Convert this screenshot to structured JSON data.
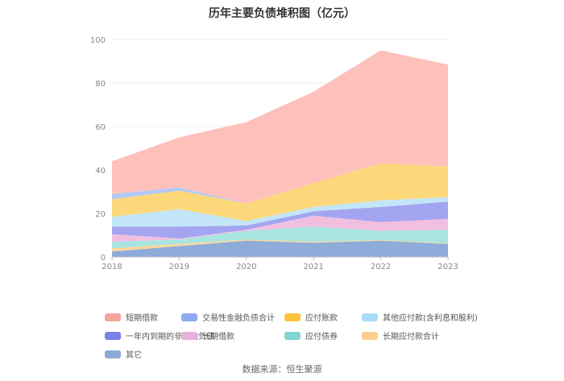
{
  "chart_data": {
    "type": "area",
    "stacked": true,
    "title": "历年主要负债堆积图（亿元）",
    "x": [
      "2018",
      "2019",
      "2020",
      "2021",
      "2022",
      "2023"
    ],
    "ylim": [
      0,
      100
    ],
    "yticks": [
      0,
      20,
      40,
      60,
      80,
      100
    ],
    "grid": true,
    "legend_position": "bottom",
    "series": [
      {
        "name": "其它",
        "color": "#8eabd9",
        "values": [
          2.5,
          5.0,
          7.5,
          6.5,
          7.5,
          6.0
        ]
      },
      {
        "name": "长期应付款合计",
        "color": "#fbd79a",
        "values": [
          1.5,
          1.0,
          0.5,
          0.5,
          0.3,
          0.3
        ]
      },
      {
        "name": "应付债券",
        "color": "#a8e4e0",
        "values": [
          3.0,
          2.0,
          4.0,
          7.0,
          4.2,
          6.2
        ]
      },
      {
        "name": "长期借款",
        "color": "#f0bfe0",
        "values": [
          3.5,
          0.5,
          0.5,
          5.0,
          4.0,
          5.0
        ]
      },
      {
        "name": "一年内到期的非流动负债",
        "color": "#a3a5f0",
        "values": [
          3.5,
          5.5,
          2.0,
          2.0,
          7.0,
          8.0
        ]
      },
      {
        "name": "其他应付款(含利息和股利)",
        "color": "#c2e6f8",
        "values": [
          4.5,
          8.0,
          2.0,
          2.0,
          3.0,
          2.0
        ]
      },
      {
        "name": "应付账款",
        "color": "#fdd87a",
        "values": [
          8.0,
          8.5,
          8.0,
          11.0,
          17.0,
          14.0
        ]
      },
      {
        "name": "交易性金融负债合计",
        "color": "#b3c9f3",
        "values": [
          2.5,
          1.5,
          0.0,
          0.0,
          0.0,
          0.0
        ]
      },
      {
        "name": "短期借款",
        "color": "#fec0bb",
        "values": [
          15.0,
          23.0,
          37.5,
          42.0,
          52.0,
          47.0
        ]
      }
    ]
  },
  "legend": [
    {
      "label": "短期借款",
      "color": "#f6a39c"
    },
    {
      "label": "交易性金融负债合计",
      "color": "#8eaaf0"
    },
    {
      "label": "应付账款",
      "color": "#fcc33e"
    },
    {
      "label": "其他应付款(含利息和股利)",
      "color": "#a8dcf6"
    },
    {
      "label": "一年内到期的非流动负债",
      "color": "#7b7fe9"
    },
    {
      "label": "长期借款",
      "color": "#e7b2d9"
    },
    {
      "label": "应付债券",
      "color": "#7fd5d0"
    },
    {
      "label": "长期应付款合计",
      "color": "#fbd08f"
    },
    {
      "label": "其它",
      "color": "#8ea8d8"
    }
  ],
  "source": "数据来源：恒生聚源"
}
